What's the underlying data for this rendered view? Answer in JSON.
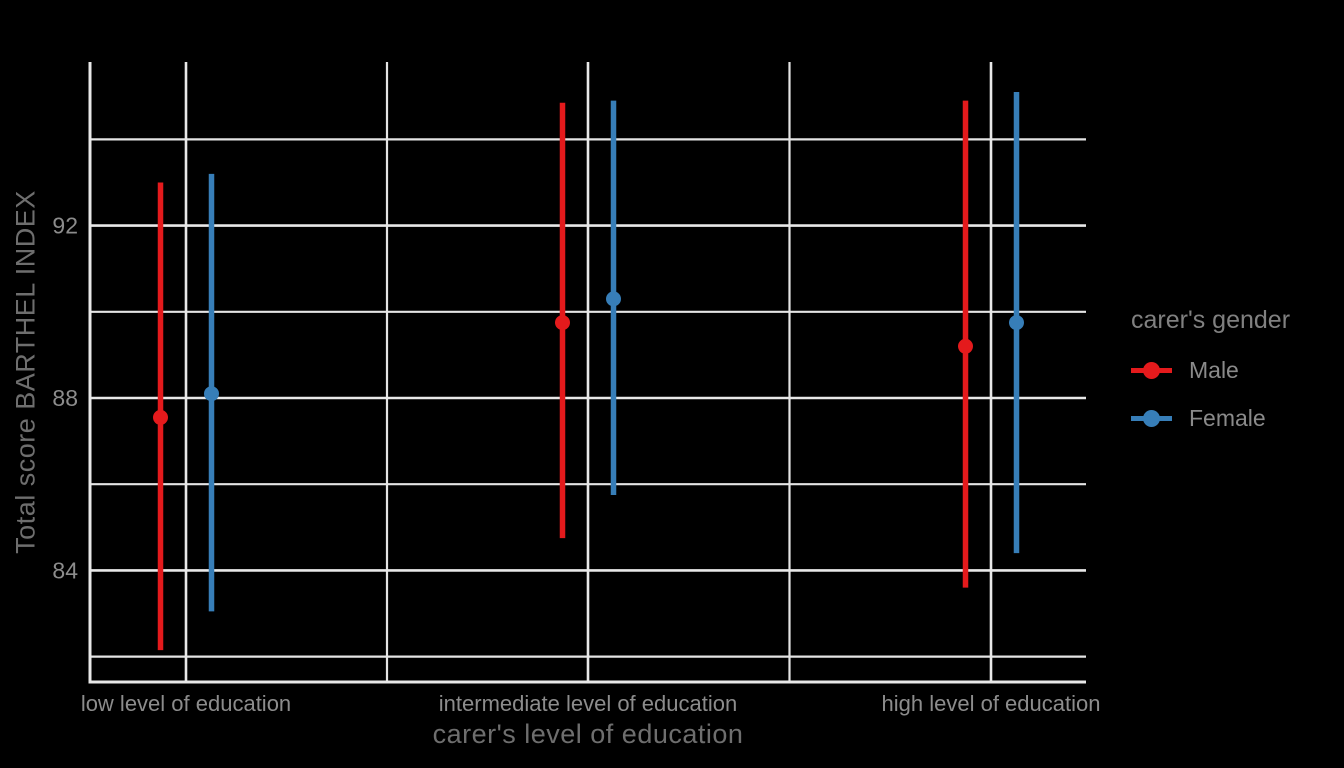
{
  "figure": {
    "background": "#000000"
  },
  "chart_data": {
    "type": "pointrange",
    "title": "",
    "xlabel": "carer's level of education",
    "ylabel": "Total score BARTHEL INDEX",
    "categories": [
      "low level of education",
      "intermediate level of education",
      "high level of education"
    ],
    "y_major_ticks": [
      84,
      88,
      92
    ],
    "y_minor_ticks": [
      82,
      86,
      90,
      94
    ],
    "ylim": [
      81.4,
      95.8
    ],
    "grid": true,
    "legend": {
      "title": "carer's gender",
      "position": "right",
      "items": [
        {
          "label": "Male",
          "color": "#E41A1C"
        },
        {
          "label": "Female",
          "color": "#377EB8"
        }
      ]
    },
    "series": [
      {
        "name": "Male",
        "color": "#E41A1C",
        "points": [
          {
            "category": "low level of education",
            "mean": 87.55,
            "lower": 82.15,
            "upper": 93.0
          },
          {
            "category": "intermediate level of education",
            "mean": 89.75,
            "lower": 84.75,
            "upper": 94.85
          },
          {
            "category": "high level of education",
            "mean": 89.2,
            "lower": 83.6,
            "upper": 94.9
          }
        ]
      },
      {
        "name": "Female",
        "color": "#377EB8",
        "points": [
          {
            "category": "low level of education",
            "mean": 88.1,
            "lower": 83.05,
            "upper": 93.2
          },
          {
            "category": "intermediate level of education",
            "mean": 90.3,
            "lower": 85.75,
            "upper": 94.9
          },
          {
            "category": "high level of education",
            "mean": 89.75,
            "lower": 84.4,
            "upper": 95.1
          }
        ]
      }
    ],
    "colors": {
      "grid_major": "#E8E8E8",
      "grid_minor": "#E4E4E4",
      "axis_line": "#E8E8E8",
      "tick_text": "#8C8C8C",
      "axis_title_text": "#6E6E6E",
      "legend_title_text": "#808080",
      "legend_label_text": "#8A8A8A"
    }
  }
}
